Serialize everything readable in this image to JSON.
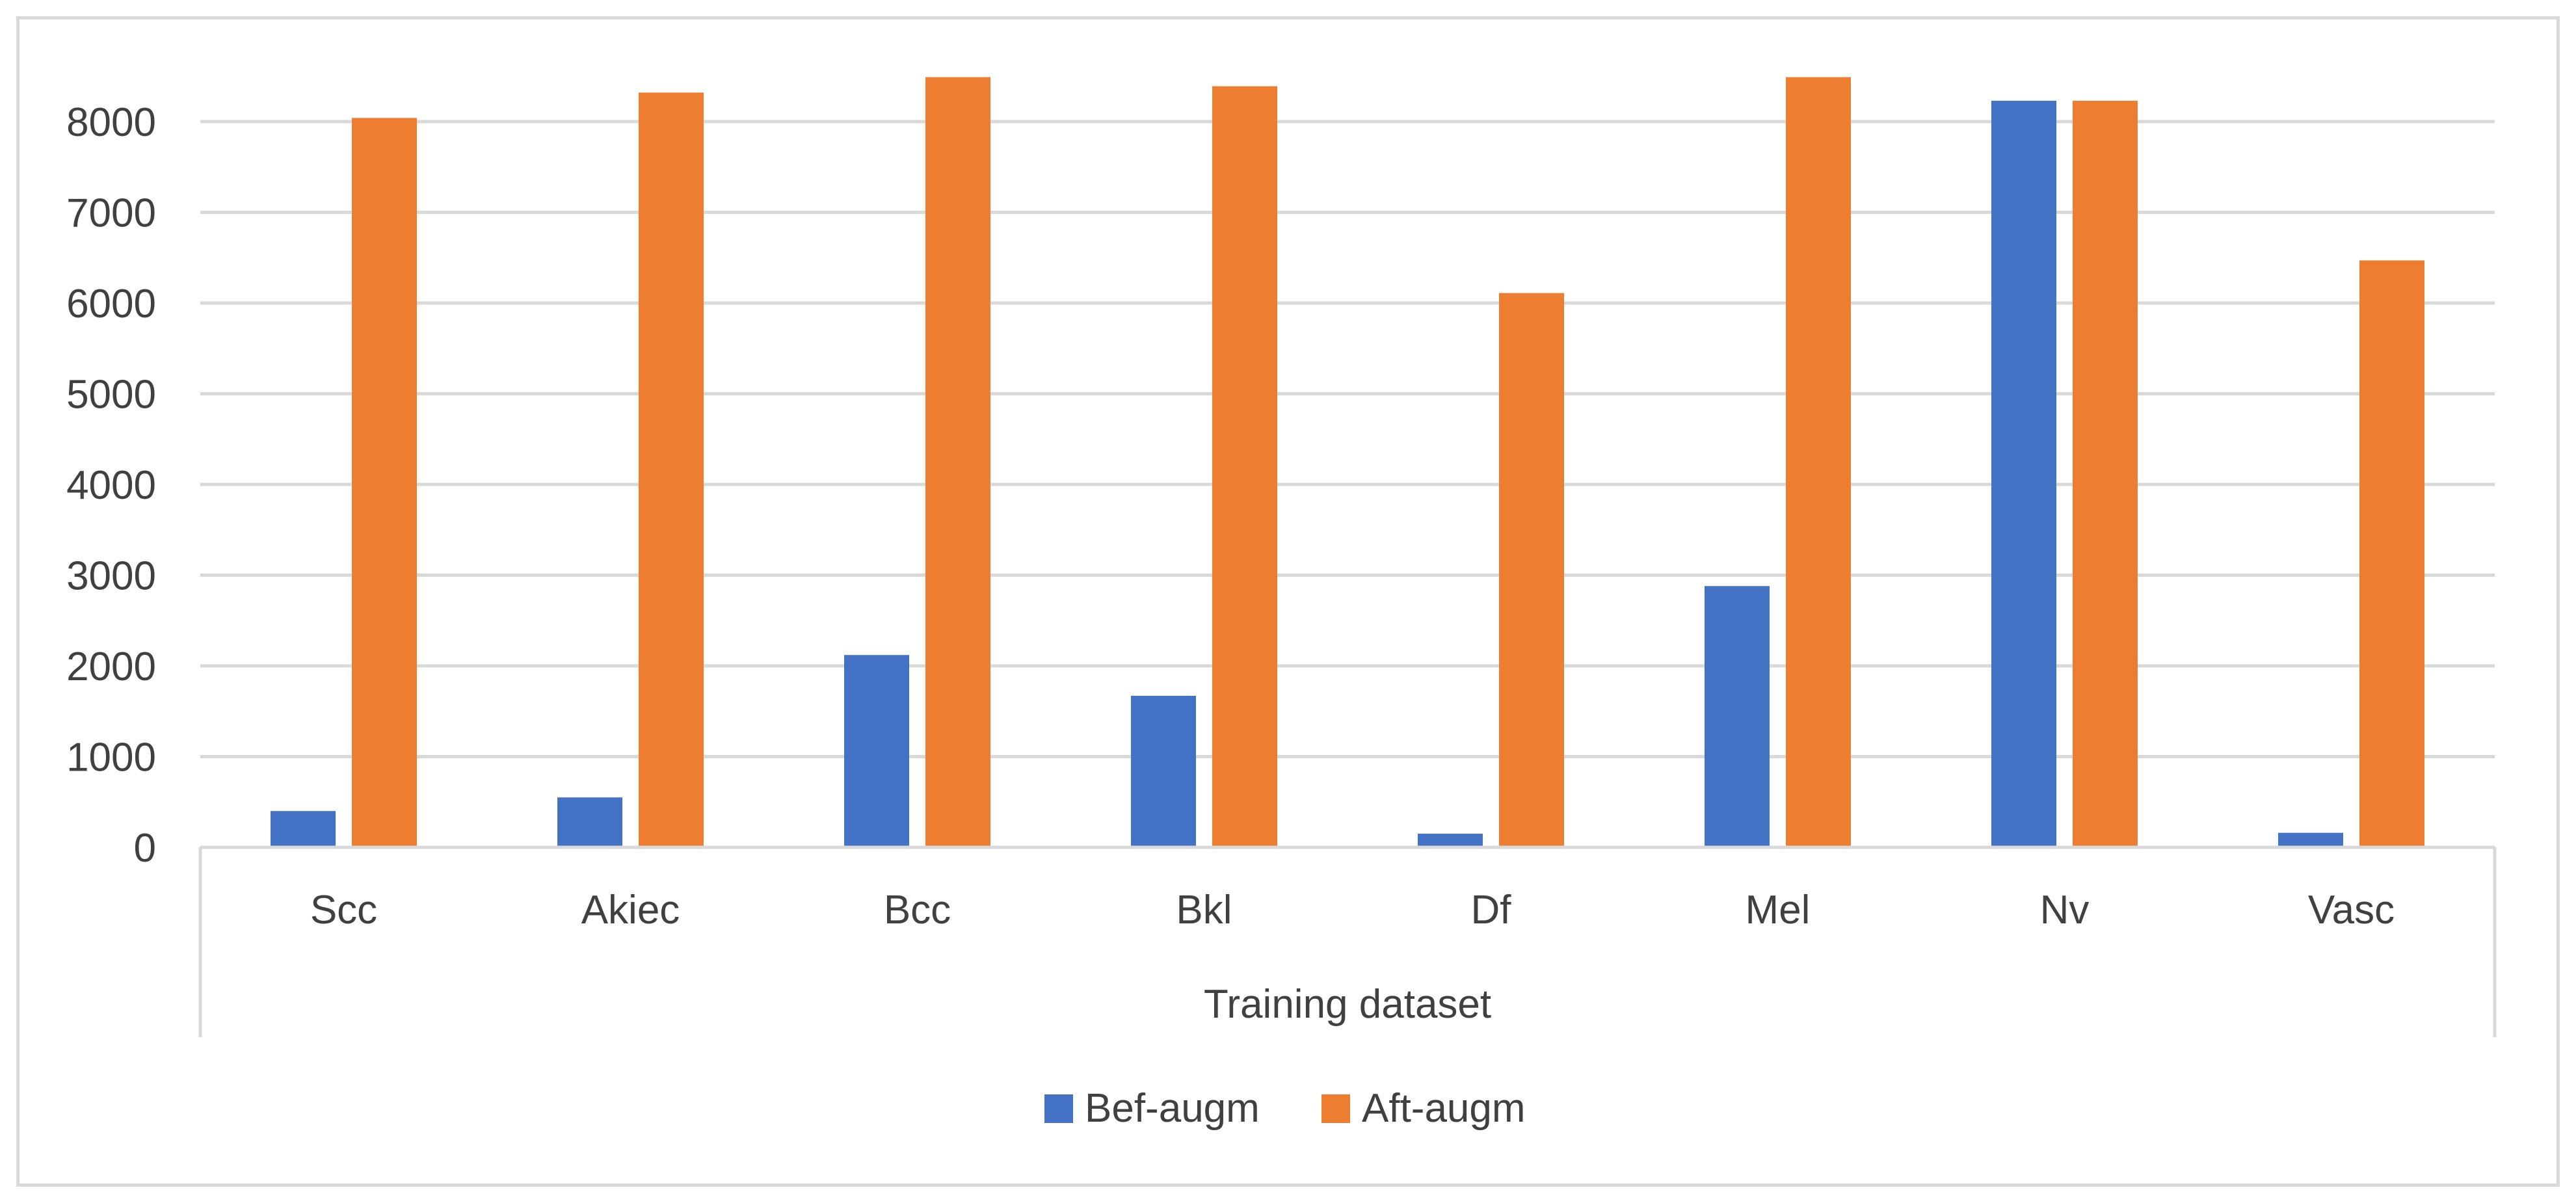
{
  "chart_data": {
    "type": "bar",
    "title": "",
    "xlabel": "Training dataset",
    "ylabel": "",
    "categories": [
      "Scc",
      "Akiec",
      "Bcc",
      "Bkl",
      "Df",
      "Mel",
      "Nv",
      "Vasc"
    ],
    "series": [
      {
        "name": "Bef-augm",
        "color": "#4472c4",
        "values": [
          400,
          550,
          2120,
          1670,
          150,
          2880,
          8230,
          160
        ]
      },
      {
        "name": "Aft-augm",
        "color": "#ed7d31",
        "values": [
          8040,
          8320,
          8490,
          8390,
          6110,
          8490,
          8230,
          6470
        ]
      }
    ],
    "ylim": [
      0,
      8000
    ],
    "yticks": [
      0,
      1000,
      2000,
      3000,
      4000,
      5000,
      6000,
      7000,
      8000
    ],
    "grid": true,
    "legend_position": "bottom"
  }
}
